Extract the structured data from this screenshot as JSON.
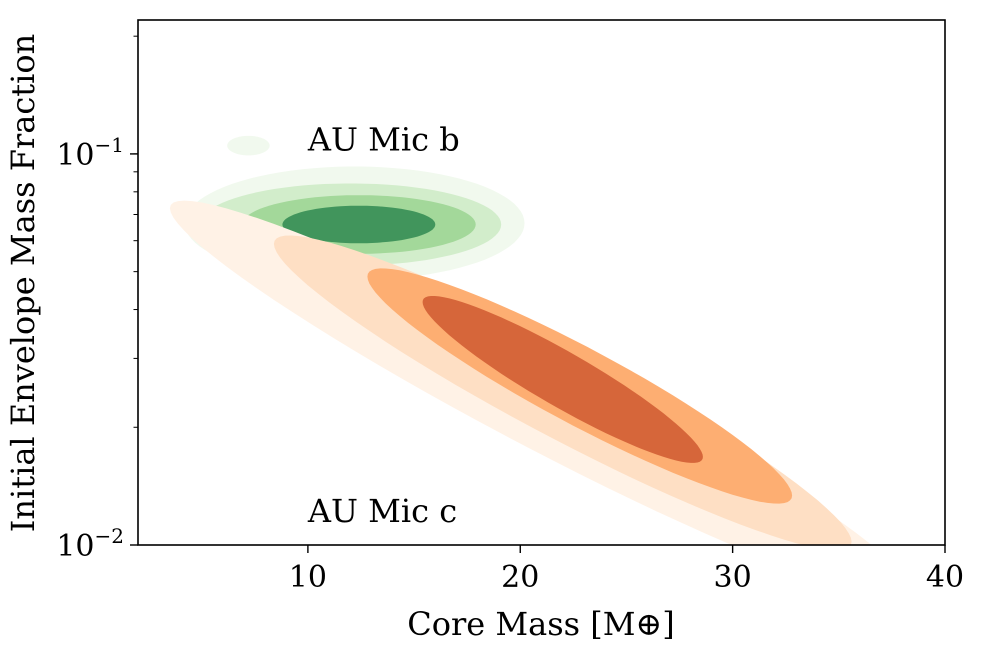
{
  "chart_data": {
    "type": "contour",
    "xlabel": "Core Mass [M⊕]",
    "ylabel": "Initial Envelope Mass Fraction",
    "xlim": [
      2,
      40
    ],
    "ylim": [
      0.01,
      0.22
    ],
    "yscale": "log",
    "x_ticks": [
      {
        "value": 10,
        "label": "10"
      },
      {
        "value": 20,
        "label": "20"
      },
      {
        "value": 30,
        "label": "30"
      },
      {
        "value": 40,
        "label": "40"
      }
    ],
    "y_ticks": [
      {
        "value": 0.1,
        "base": "10",
        "exp": "−1"
      },
      {
        "value": 0.01,
        "base": "10",
        "exp": "−2"
      }
    ],
    "grid": false,
    "legend": "none",
    "annotations": [
      {
        "text": "AU Mic b",
        "x": 10.0,
        "y": 0.109
      },
      {
        "text": "AU Mic c",
        "x": 10.0,
        "y": 0.0122
      }
    ],
    "series": [
      {
        "name": "AU Mic b",
        "colormap": "Greens",
        "levels": [
          {
            "level": 1,
            "color": "#f1f9ee",
            "cx": 12.2,
            "cy": 0.0665,
            "rx": 8.0,
            "ry_dex": 0.145,
            "tilt": 0.0
          },
          {
            "level": 2,
            "color": "#d2edcb",
            "cx": 12.0,
            "cy": 0.066,
            "rx": 7.1,
            "ry_dex": 0.105,
            "tilt": 0.0
          },
          {
            "level": 3,
            "color": "#a3d89a",
            "cx": 12.4,
            "cy": 0.066,
            "rx": 5.5,
            "ry_dex": 0.075,
            "tilt": 0.0
          },
          {
            "level": 4,
            "color": "#41955c",
            "cx": 12.4,
            "cy": 0.066,
            "rx": 3.6,
            "ry_dex": 0.048,
            "tilt": 0.0
          }
        ],
        "islands": [
          {
            "color": "#f1f9ee",
            "cx": 7.2,
            "cy": 0.105,
            "rx": 1.0,
            "ry_dex": 0.025
          }
        ]
      },
      {
        "name": "AU Mic c",
        "colormap": "Oranges",
        "levels": [
          {
            "level": 1,
            "color": "#fff2e6",
            "cx": 21.0,
            "cy": 0.0235,
            "rx": 17.5,
            "ry_dex": 0.14,
            "tilt": -0.28
          },
          {
            "level": 2,
            "color": "#fedfc4",
            "cx": 22.0,
            "cy": 0.0245,
            "rx": 13.6,
            "ry_dex": 0.13,
            "tilt": -0.28
          },
          {
            "level": 3,
            "color": "#fdae72",
            "cx": 22.8,
            "cy": 0.0255,
            "rx": 10.0,
            "ry_dex": 0.11,
            "tilt": -0.28
          },
          {
            "level": 4,
            "color": "#d6663a",
            "cx": 22.0,
            "cy": 0.0265,
            "rx": 6.6,
            "ry_dex": 0.08,
            "tilt": -0.3
          }
        ]
      }
    ]
  }
}
